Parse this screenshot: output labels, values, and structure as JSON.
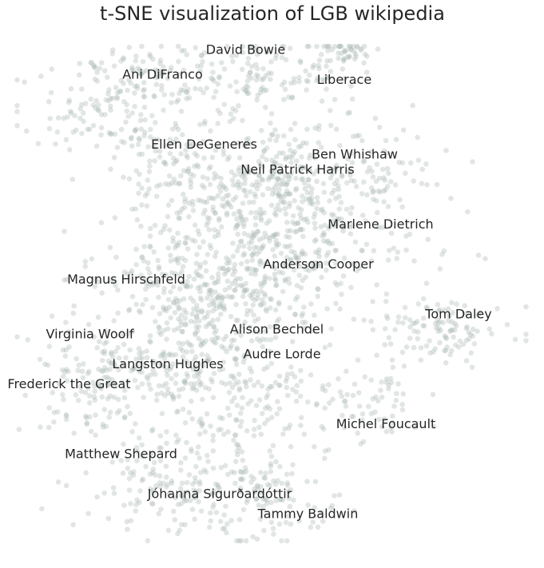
{
  "chart_data": {
    "type": "scatter",
    "title": "t-SNE visualization of LGB wikipedia",
    "xlabel": "",
    "ylabel": "",
    "grid": false,
    "legend": false,
    "xlim": [
      0,
      100
    ],
    "ylim": [
      0,
      100
    ],
    "point_color": "#a9b8b5",
    "clusters": [
      {
        "cx": 17,
        "cy": 85,
        "sx": 8,
        "sy": 4,
        "n": 90
      },
      {
        "cx": 25,
        "cy": 94,
        "sx": 8,
        "sy": 4,
        "n": 110
      },
      {
        "cx": 48,
        "cy": 93,
        "sx": 8,
        "sy": 4,
        "n": 120
      },
      {
        "cx": 63,
        "cy": 98,
        "sx": 4,
        "sy": 3,
        "n": 60
      },
      {
        "cx": 50,
        "cy": 75,
        "sx": 7,
        "sy": 5,
        "n": 140
      },
      {
        "cx": 32,
        "cy": 73,
        "sx": 7,
        "sy": 5,
        "n": 120
      },
      {
        "cx": 66,
        "cy": 75,
        "sx": 8,
        "sy": 5,
        "n": 110
      },
      {
        "cx": 47,
        "cy": 63,
        "sx": 10,
        "sy": 7,
        "n": 210
      },
      {
        "cx": 62,
        "cy": 61,
        "sx": 10,
        "sy": 6,
        "n": 130
      },
      {
        "cx": 30,
        "cy": 54,
        "sx": 9,
        "sy": 5,
        "n": 120
      },
      {
        "cx": 46,
        "cy": 50,
        "sx": 10,
        "sy": 6,
        "n": 190
      },
      {
        "cx": 83,
        "cy": 43,
        "sx": 7,
        "sy": 3,
        "n": 110
      },
      {
        "cx": 34,
        "cy": 41,
        "sx": 9,
        "sy": 5,
        "n": 150
      },
      {
        "cx": 22,
        "cy": 35,
        "sx": 9,
        "sy": 4,
        "n": 110
      },
      {
        "cx": 44,
        "cy": 28,
        "sx": 10,
        "sy": 6,
        "n": 170
      },
      {
        "cx": 68,
        "cy": 28,
        "sx": 5,
        "sy": 4,
        "n": 60
      },
      {
        "cx": 14,
        "cy": 28,
        "sx": 6,
        "sy": 4,
        "n": 60
      },
      {
        "cx": 30,
        "cy": 12,
        "sx": 8,
        "sy": 5,
        "n": 140
      },
      {
        "cx": 50,
        "cy": 9,
        "sx": 7,
        "sy": 5,
        "n": 120
      }
    ],
    "labels": [
      {
        "text": "David Bowie",
        "x": 45,
        "y": 99
      },
      {
        "text": "Ani DiFranco",
        "x": 29,
        "y": 94
      },
      {
        "text": "Liberace",
        "x": 64,
        "y": 93
      },
      {
        "text": "Ellen DeGeneres",
        "x": 37,
        "y": 80
      },
      {
        "text": "Ben Whishaw",
        "x": 66,
        "y": 78
      },
      {
        "text": "Neil Patrick Harris",
        "x": 55,
        "y": 75
      },
      {
        "text": "Marlene Dietrich",
        "x": 71,
        "y": 64
      },
      {
        "text": "Anderson Cooper",
        "x": 59,
        "y": 56
      },
      {
        "text": "Magnus Hirschfeld",
        "x": 22,
        "y": 53
      },
      {
        "text": "Tom Daley",
        "x": 86,
        "y": 46
      },
      {
        "text": "Virginia Woolf",
        "x": 15,
        "y": 42
      },
      {
        "text": "Alison Bechdel",
        "x": 51,
        "y": 43
      },
      {
        "text": "Audre Lorde",
        "x": 52,
        "y": 38
      },
      {
        "text": "Langston Hughes",
        "x": 30,
        "y": 36
      },
      {
        "text": "Frederick the Great",
        "x": 11,
        "y": 32
      },
      {
        "text": "Michel Foucault",
        "x": 72,
        "y": 24
      },
      {
        "text": "Matthew Shepard",
        "x": 21,
        "y": 18
      },
      {
        "text": "Jóhanna Sigurðardóttir",
        "x": 40,
        "y": 10
      },
      {
        "text": "Tammy Baldwin",
        "x": 57,
        "y": 6
      }
    ]
  }
}
